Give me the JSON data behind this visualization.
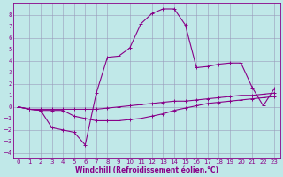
{
  "background_color": "#c0e8e8",
  "grid_color": "#9999bb",
  "line_color": "#880088",
  "xlim": [
    -0.5,
    23.5
  ],
  "ylim": [
    -4.5,
    9.0
  ],
  "yticks": [
    -4,
    -3,
    -2,
    -1,
    0,
    1,
    2,
    3,
    4,
    5,
    6,
    7,
    8
  ],
  "xticks": [
    0,
    1,
    2,
    3,
    4,
    5,
    6,
    7,
    8,
    9,
    10,
    11,
    12,
    13,
    14,
    15,
    16,
    17,
    18,
    19,
    20,
    21,
    22,
    23
  ],
  "xlabel": "Windchill (Refroidissement éolien,°C)",
  "xlabel_fontsize": 5.5,
  "tick_fontsize": 5.0,
  "line1_x": [
    0,
    1,
    2,
    3,
    4,
    5,
    6,
    7,
    8,
    9,
    10,
    11,
    12,
    13,
    14,
    15,
    16,
    17,
    18,
    19,
    20,
    21,
    22,
    23
  ],
  "line1_y": [
    0.0,
    -0.2,
    -0.2,
    -0.2,
    -0.2,
    -0.2,
    -0.2,
    -0.2,
    -0.1,
    0.0,
    0.1,
    0.2,
    0.3,
    0.4,
    0.5,
    0.5,
    0.6,
    0.7,
    0.8,
    0.9,
    1.0,
    1.0,
    1.1,
    1.2
  ],
  "line2_x": [
    0,
    1,
    2,
    3,
    4,
    5,
    6,
    7,
    8,
    9,
    10,
    11,
    12,
    13,
    14,
    15,
    16,
    17,
    18,
    19,
    20,
    21,
    22,
    23
  ],
  "line2_y": [
    0.0,
    -0.2,
    -0.3,
    -0.3,
    -0.3,
    -0.8,
    -1.0,
    -1.2,
    -1.2,
    -1.2,
    -1.1,
    -1.0,
    -0.8,
    -0.6,
    -0.3,
    -0.1,
    0.1,
    0.3,
    0.4,
    0.5,
    0.6,
    0.7,
    0.8,
    0.9
  ],
  "line3_x": [
    0,
    1,
    2,
    3,
    4,
    5,
    6,
    7,
    8,
    9,
    10,
    11,
    12,
    13,
    14,
    15,
    16,
    17,
    18,
    19,
    20,
    21,
    22,
    23
  ],
  "line3_y": [
    0.0,
    -0.2,
    -0.3,
    -1.8,
    -2.0,
    -2.2,
    -3.3,
    1.2,
    4.3,
    4.4,
    5.1,
    7.2,
    8.1,
    8.5,
    8.5,
    7.1,
    3.4,
    3.5,
    3.7,
    3.8,
    3.8,
    1.7,
    0.1,
    1.6
  ]
}
